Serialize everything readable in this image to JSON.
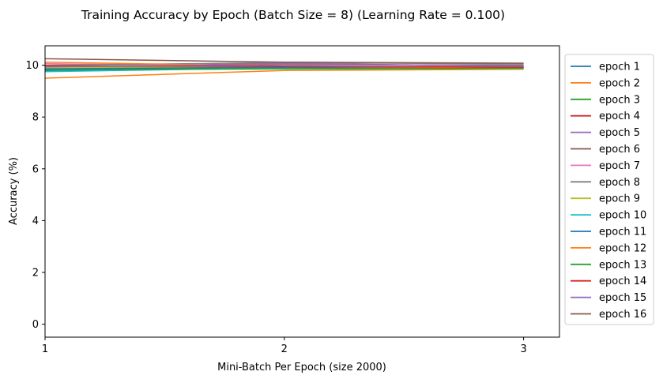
{
  "chart_data": {
    "type": "line",
    "title": "Training Accuracy by Epoch (Batch Size = 8) (Learning Rate = 0.100)",
    "xlabel": "Mini-Batch Per Epoch (size 2000)",
    "ylabel": "Accuracy (%)",
    "x": [
      1,
      2,
      3
    ],
    "xticks": [
      "1",
      "2",
      "3"
    ],
    "yticks": [
      "0",
      "2",
      "4",
      "6",
      "8",
      "10"
    ],
    "xlim": [
      1,
      3.15
    ],
    "ylim": [
      -0.5,
      10.75
    ],
    "grid": false,
    "legend_position": "outside right",
    "series": [
      {
        "name": "epoch 1",
        "color": "#1f77b4",
        "values": [
          9.8,
          9.88,
          9.9
        ]
      },
      {
        "name": "epoch 2",
        "color": "#ff7f0e",
        "values": [
          9.5,
          9.8,
          9.84
        ]
      },
      {
        "name": "epoch 3",
        "color": "#2ca02c",
        "values": [
          9.84,
          9.86,
          9.88
        ]
      },
      {
        "name": "epoch 4",
        "color": "#d62728",
        "values": [
          9.95,
          9.96,
          9.93
        ]
      },
      {
        "name": "epoch 5",
        "color": "#9467bd",
        "values": [
          9.9,
          10.08,
          9.95
        ]
      },
      {
        "name": "epoch 6",
        "color": "#8c564b",
        "values": [
          9.92,
          10.02,
          10.0
        ]
      },
      {
        "name": "epoch 7",
        "color": "#e377c2",
        "values": [
          10.06,
          9.95,
          9.92
        ]
      },
      {
        "name": "epoch 8",
        "color": "#7f7f7f",
        "values": [
          10.0,
          10.1,
          10.05
        ]
      },
      {
        "name": "epoch 9",
        "color": "#bcbd22",
        "values": [
          9.9,
          9.94,
          9.86
        ]
      },
      {
        "name": "epoch 10",
        "color": "#17becf",
        "values": [
          9.75,
          9.9,
          9.95
        ]
      },
      {
        "name": "epoch 11",
        "color": "#1f77b4",
        "values": [
          9.86,
          9.92,
          9.9
        ]
      },
      {
        "name": "epoch 12",
        "color": "#ff7f0e",
        "values": [
          10.12,
          9.96,
          9.9
        ]
      },
      {
        "name": "epoch 13",
        "color": "#2ca02c",
        "values": [
          9.82,
          9.86,
          9.88
        ]
      },
      {
        "name": "epoch 14",
        "color": "#d62728",
        "values": [
          9.98,
          9.96,
          9.92
        ]
      },
      {
        "name": "epoch 15",
        "color": "#9467bd",
        "values": [
          9.94,
          10.04,
          9.98
        ]
      },
      {
        "name": "epoch 16",
        "color": "#8c564b",
        "values": [
          10.25,
          10.12,
          10.08
        ]
      }
    ]
  }
}
